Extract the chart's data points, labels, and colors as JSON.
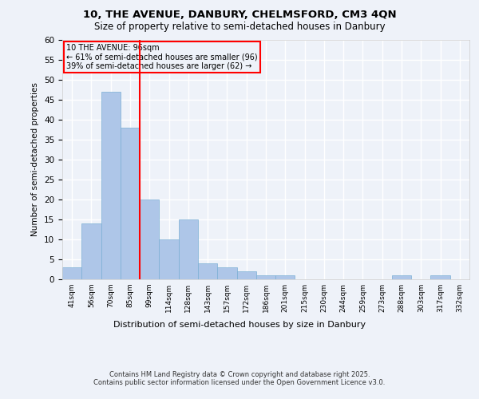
{
  "title1": "10, THE AVENUE, DANBURY, CHELMSFORD, CM3 4QN",
  "title2": "Size of property relative to semi-detached houses in Danbury",
  "xlabel": "Distribution of semi-detached houses by size in Danbury",
  "ylabel": "Number of semi-detached properties",
  "categories": [
    "41sqm",
    "56sqm",
    "70sqm",
    "85sqm",
    "99sqm",
    "114sqm",
    "128sqm",
    "143sqm",
    "157sqm",
    "172sqm",
    "186sqm",
    "201sqm",
    "215sqm",
    "230sqm",
    "244sqm",
    "259sqm",
    "273sqm",
    "288sqm",
    "303sqm",
    "317sqm",
    "332sqm"
  ],
  "values": [
    3,
    14,
    47,
    38,
    20,
    10,
    15,
    4,
    3,
    2,
    1,
    1,
    0,
    0,
    0,
    0,
    0,
    1,
    0,
    1,
    0
  ],
  "bar_color": "#aec6e8",
  "bar_edge_color": "#7bafd4",
  "vline_color": "red",
  "vline_index": 3.5,
  "annotation_title": "10 THE AVENUE: 96sqm",
  "annotation_line1": "← 61% of semi-detached houses are smaller (96)",
  "annotation_line2": "39% of semi-detached houses are larger (62) →",
  "annotation_box_color": "red",
  "ylim": [
    0,
    60
  ],
  "yticks": [
    0,
    5,
    10,
    15,
    20,
    25,
    30,
    35,
    40,
    45,
    50,
    55,
    60
  ],
  "footer1": "Contains HM Land Registry data © Crown copyright and database right 2025.",
  "footer2": "Contains public sector information licensed under the Open Government Licence v3.0.",
  "bg_color": "#eef2f9",
  "grid_color": "white"
}
